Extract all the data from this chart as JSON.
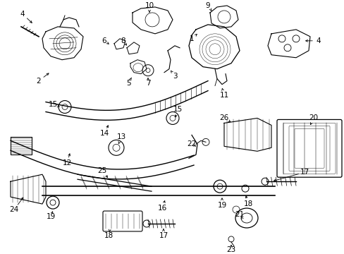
{
  "bg_color": "#ffffff",
  "fig_width": 4.89,
  "fig_height": 3.6,
  "dpi": 100,
  "image_b64": ""
}
